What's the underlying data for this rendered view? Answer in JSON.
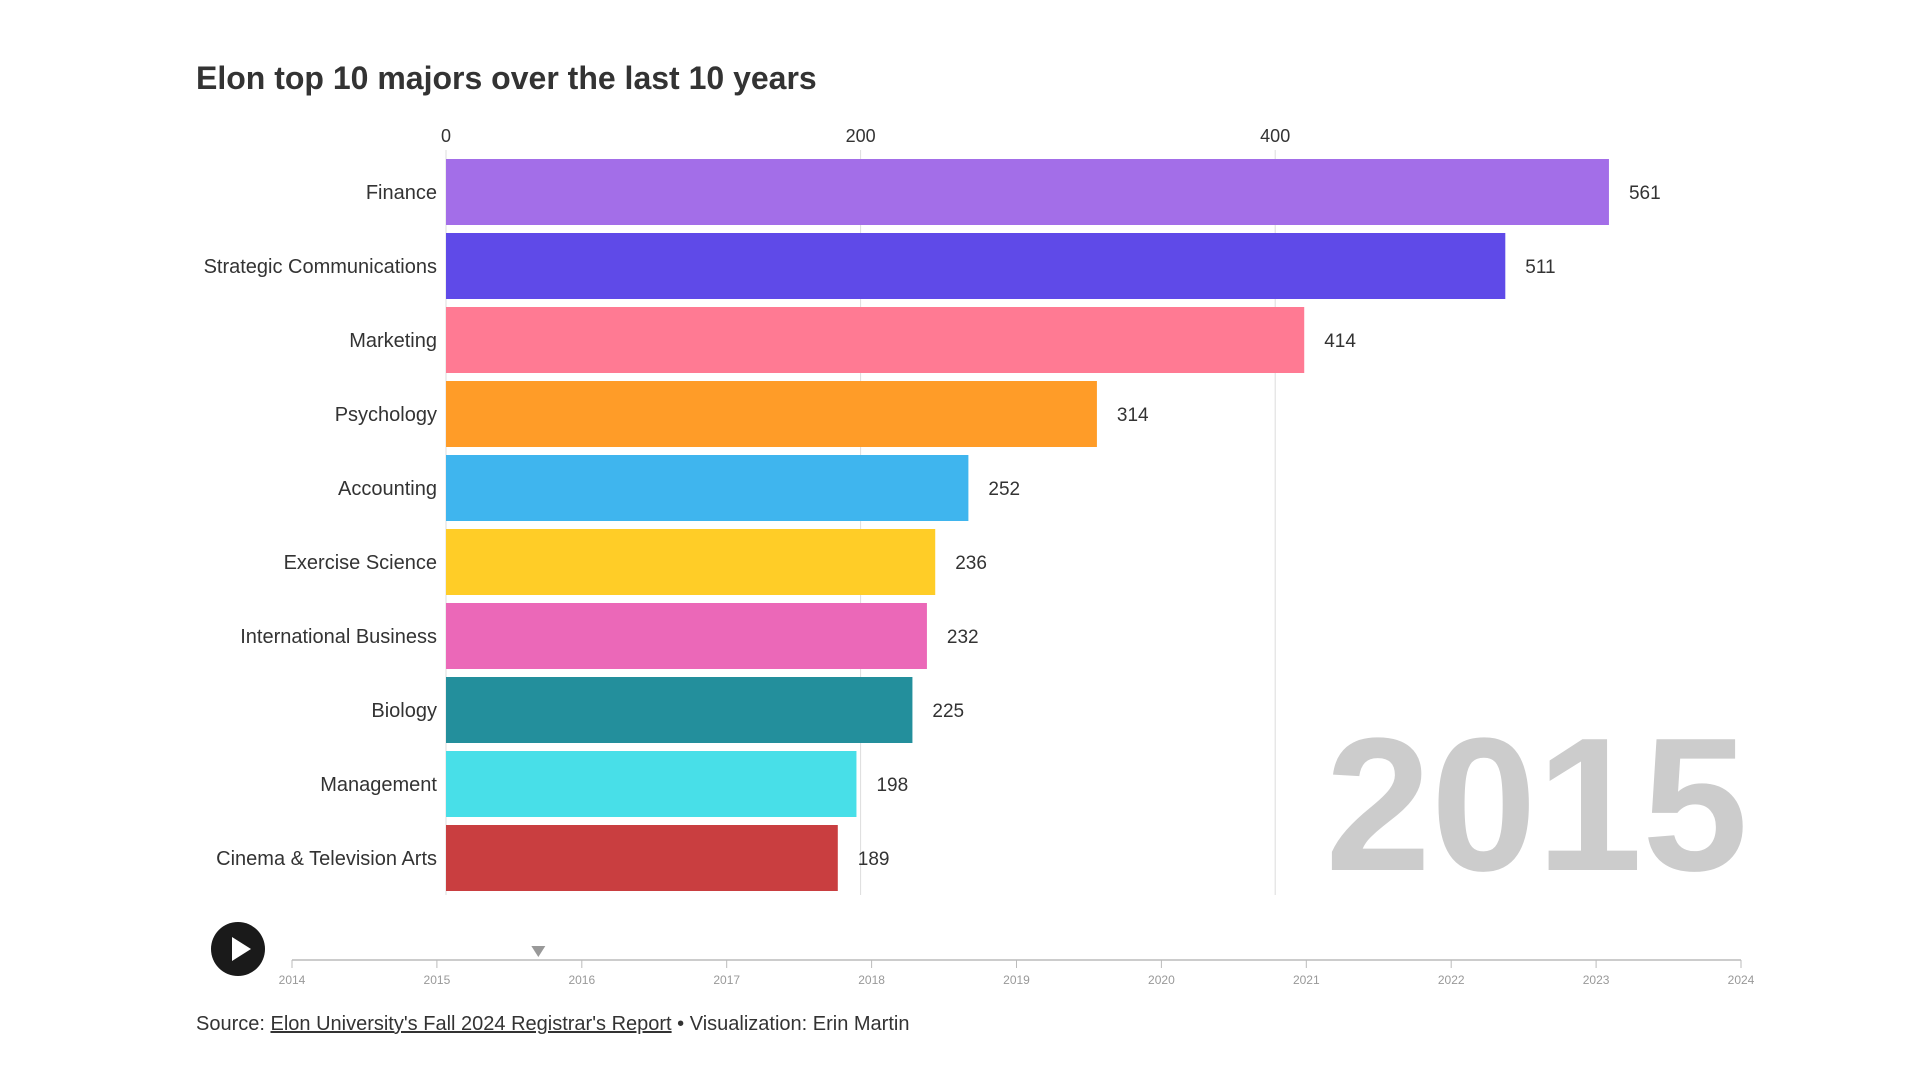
{
  "title": "Elon top 10 majors over the last 10 years",
  "chart_data": {
    "type": "bar",
    "orientation": "horizontal",
    "title": "Elon top 10 majors over the last 10 years",
    "xlim": [
      0,
      620
    ],
    "x_ticks": [
      0,
      200,
      400
    ],
    "x_ticks_position": "top",
    "grid": true,
    "current_year": "2015",
    "categories": [
      "Finance",
      "Strategic Communications",
      "Marketing",
      "Psychology",
      "Accounting",
      "Exercise Science",
      "International Business",
      "Biology",
      "Management",
      "Cinema & Television Arts"
    ],
    "values": [
      561,
      511,
      414,
      314,
      252,
      236,
      232,
      225,
      198,
      189
    ],
    "colors": [
      "#a36ee8",
      "#5f4ae8",
      "#ff7a93",
      "#ff9c28",
      "#3fb5ee",
      "#ffcd27",
      "#eb68b8",
      "#238f9c",
      "#48dfe8",
      "#c93e40"
    ]
  },
  "timeline": {
    "years": [
      "2014",
      "2015",
      "2016",
      "2017",
      "2018",
      "2019",
      "2020",
      "2021",
      "2022",
      "2023",
      "2024"
    ],
    "current_position": 2015.7,
    "play_icon": "play-icon"
  },
  "source": {
    "prefix": "Source: ",
    "link_text": "Elon University's Fall 2024 Registrar's Report",
    "suffix": " • Visualization: Erin Martin"
  }
}
